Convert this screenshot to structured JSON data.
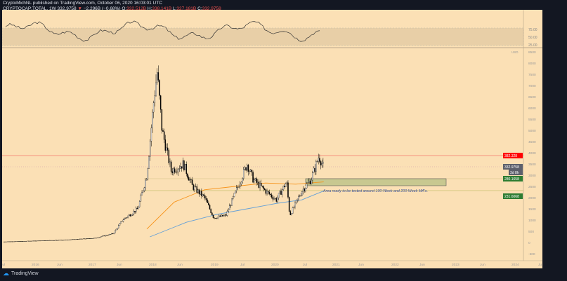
{
  "header": {
    "published": "CryptoMichNL published on TradingView.com, October 06, 2020 16:03:01 UTC",
    "symbol": "CRYPTOCAP:TOTAL, 1W",
    "last": "332.9758",
    "change": "−2.296B (−0.68%)",
    "o_label": "O:",
    "o": "332.512B",
    "h_label": "H:",
    "h": "338.141B",
    "l_label": "L:",
    "l": "327.181B",
    "c_label": "C:",
    "c": "332.9758"
  },
  "rsi_axis": [
    "75.00",
    "50.00",
    "25.00"
  ],
  "price_axis": [
    "8500",
    "8000",
    "7500",
    "7000",
    "6500",
    "6000",
    "5500",
    "5000",
    "4500",
    "4000",
    "3500",
    "3000",
    "2500",
    "2000",
    "1500",
    "1000",
    "500",
    "0",
    "-500"
  ],
  "currency": "USD",
  "price_labels": {
    "resistance": "382.328",
    "last": "332.9758",
    "countdown": "3d 8h",
    "zone_top": "280.1658",
    "support": "231.6068"
  },
  "annotation": "Area ready to be tested around 100-Week and 200-Week MA's.",
  "time_axis": [
    "Jul",
    "2016",
    "Jun",
    "2017",
    "Jun",
    "2018",
    "Jun",
    "2019",
    "Jul",
    "2020",
    "Jul",
    "2021",
    "Jun",
    "2022",
    "Jun",
    "2023",
    "Jun",
    "2024",
    "Ju"
  ],
  "footer": {
    "brand": "TradingView"
  },
  "colors": {
    "up": "#ffffff",
    "down": "#000000",
    "ma100": "#f7931a",
    "ma200": "#64a0d8",
    "resistance": "#f57c6c",
    "zone": "#c8c890",
    "label_green": "#2e7d32"
  },
  "chart_data": {
    "type": "candlestick",
    "price_anchors": [
      [
        2015.5,
        30
      ],
      [
        2016.0,
        70
      ],
      [
        2016.5,
        110
      ],
      [
        2017.0,
        190
      ],
      [
        2017.3,
        400
      ],
      [
        2017.45,
        1000
      ],
      [
        2017.7,
        1500
      ],
      [
        2017.85,
        3000
      ],
      [
        2017.97,
        6500
      ],
      [
        2018.02,
        7600
      ],
      [
        2018.1,
        5000
      ],
      [
        2018.25,
        3200
      ],
      [
        2018.45,
        3500
      ],
      [
        2018.6,
        2500
      ],
      [
        2018.8,
        2000
      ],
      [
        2018.95,
        1100
      ],
      [
        2019.15,
        1200
      ],
      [
        2019.35,
        2500
      ],
      [
        2019.5,
        3500
      ],
      [
        2019.6,
        2800
      ],
      [
        2019.8,
        2300
      ],
      [
        2019.98,
        1900
      ],
      [
        2020.15,
        2700
      ],
      [
        2020.2,
        1200
      ],
      [
        2020.4,
        2300
      ],
      [
        2020.55,
        2800
      ],
      [
        2020.65,
        3600
      ],
      [
        2020.68,
        3850
      ],
      [
        2020.76,
        3350
      ]
    ],
    "ma100": [
      [
        2017.85,
        600
      ],
      [
        2018.3,
        1800
      ],
      [
        2018.8,
        2350
      ],
      [
        2019.3,
        2500
      ],
      [
        2019.8,
        2650
      ],
      [
        2020.3,
        2600
      ],
      [
        2020.76,
        2700
      ]
    ],
    "ma200": [
      [
        2017.9,
        250
      ],
      [
        2018.5,
        900
      ],
      [
        2019.0,
        1250
      ],
      [
        2019.5,
        1500
      ],
      [
        2020.0,
        1750
      ],
      [
        2020.4,
        1900
      ],
      [
        2020.76,
        2300
      ]
    ]
  }
}
